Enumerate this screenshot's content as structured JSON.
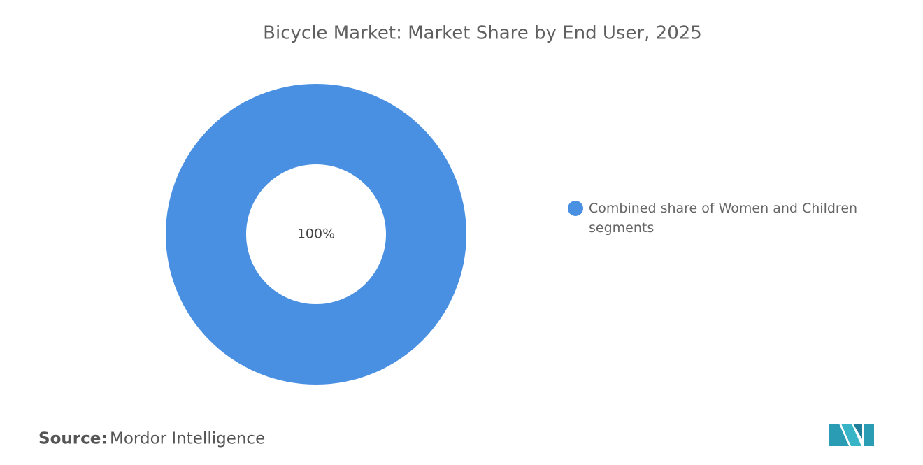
{
  "chart_data": {
    "type": "donut",
    "title": "Bicycle Market: Market Share by End User, 2025",
    "categories": [
      "Combined share of Women and Children segments"
    ],
    "values": [
      100
    ],
    "value_labels": [
      "100%"
    ],
    "colors": [
      "#4a90e2"
    ],
    "legend": "right",
    "source_label": "Source:",
    "source": "Mordor Intelligence"
  }
}
